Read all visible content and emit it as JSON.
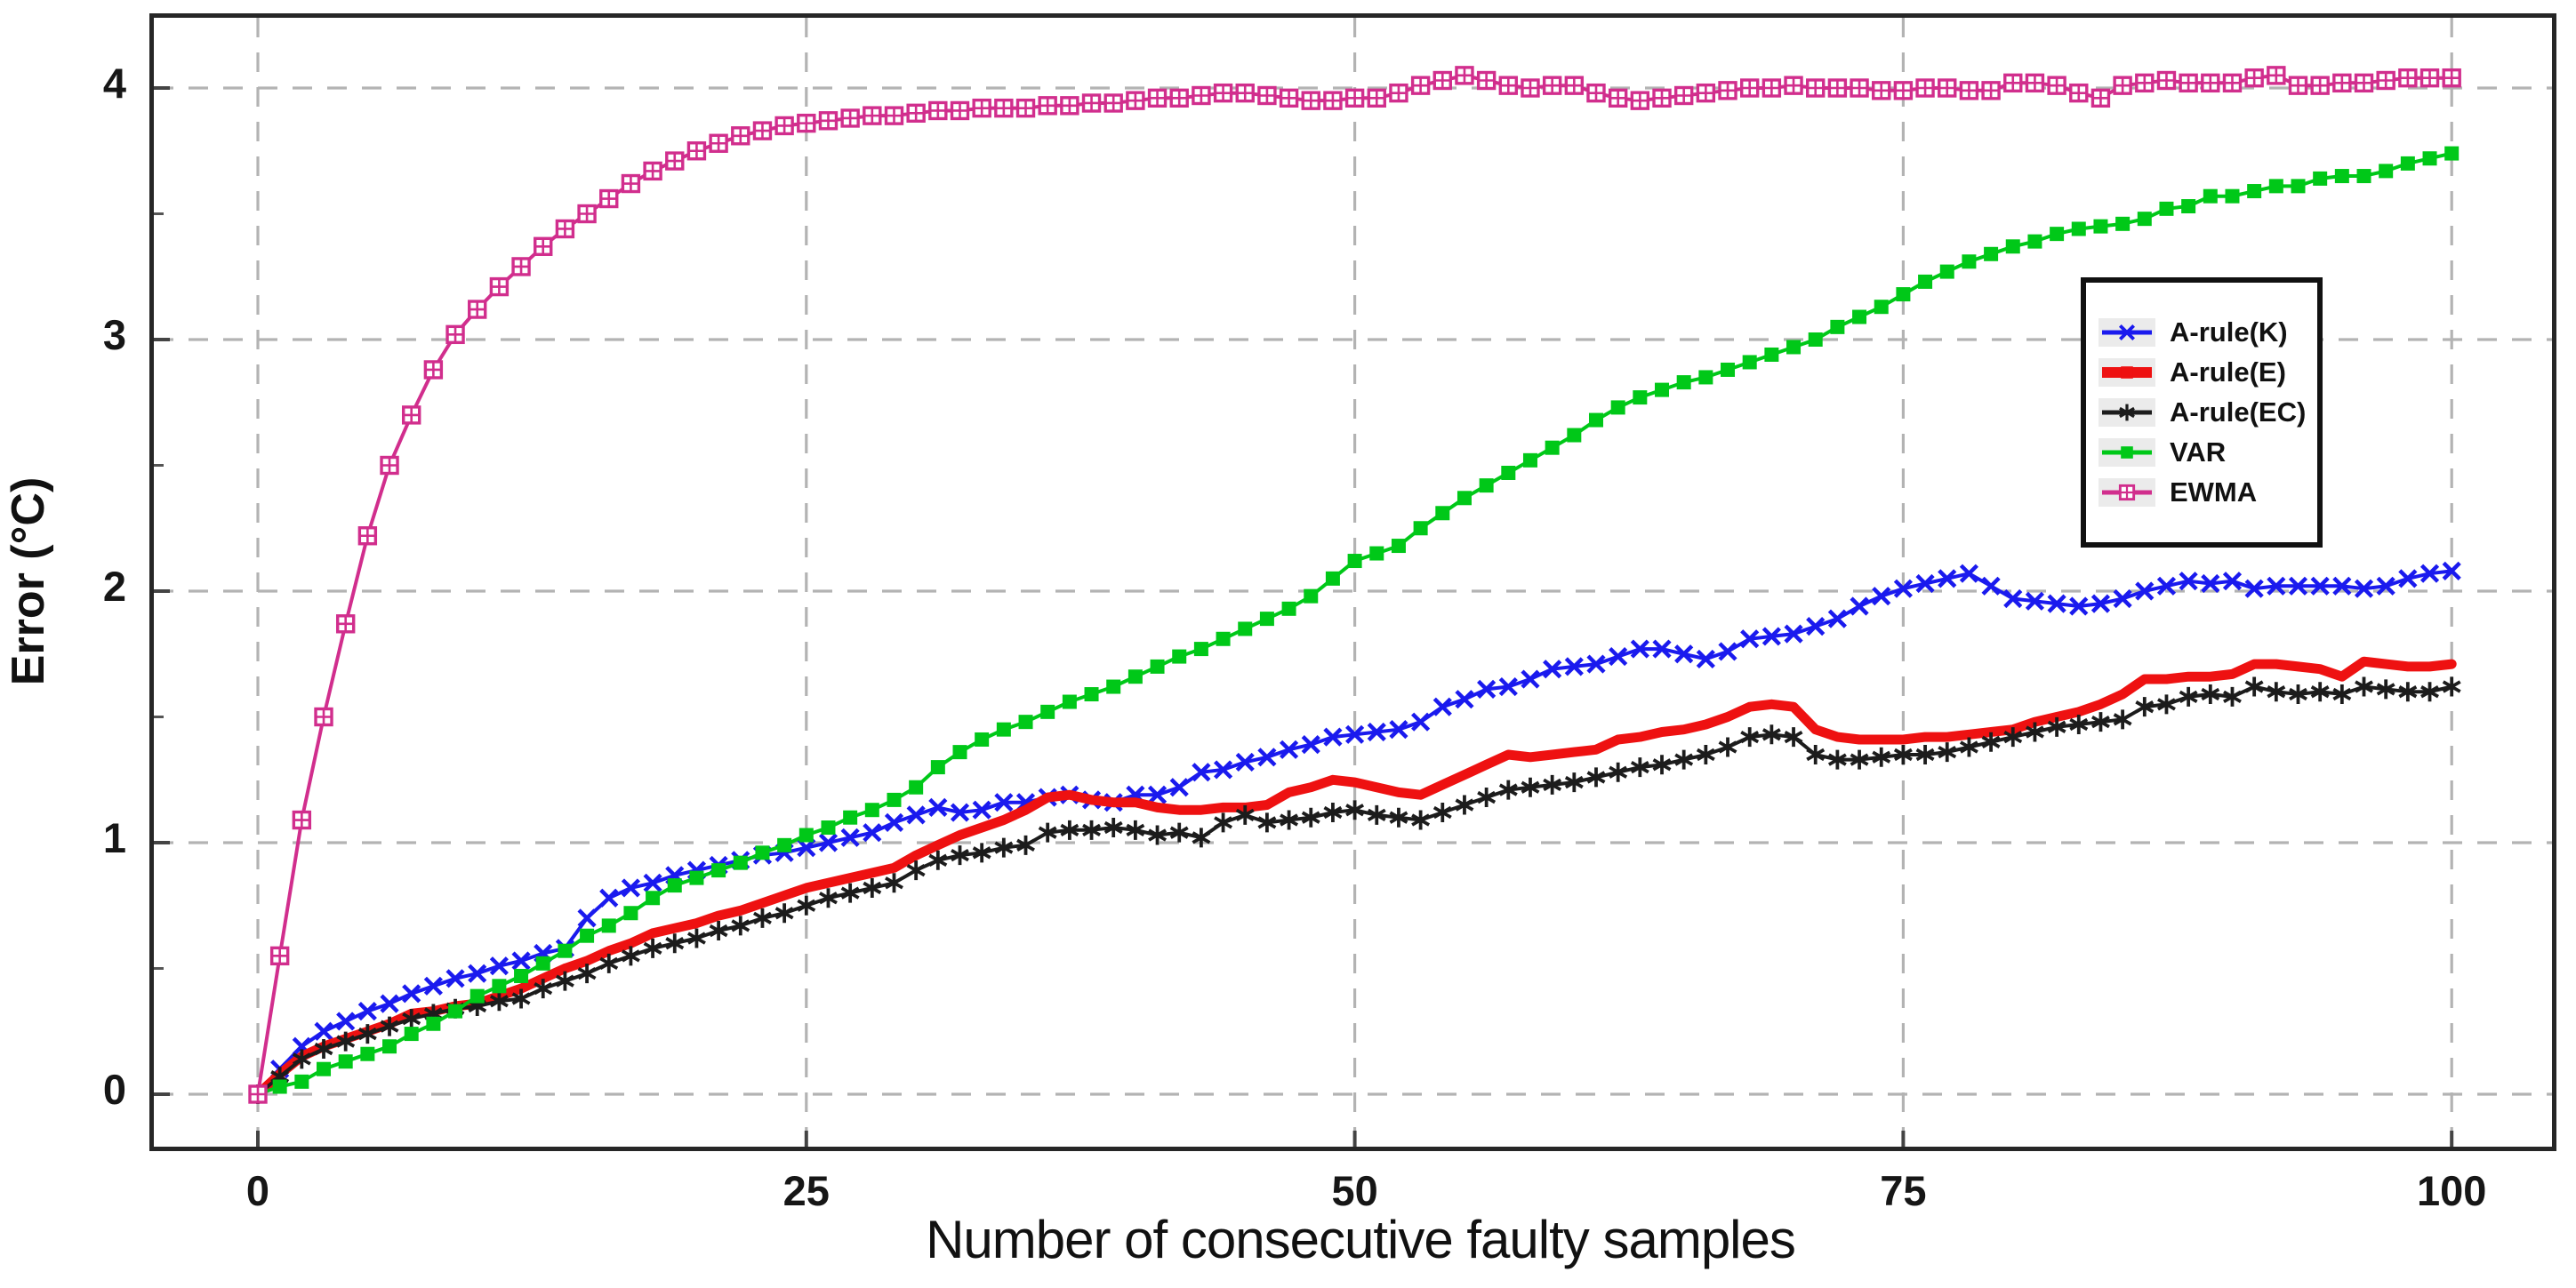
{
  "chart_data": {
    "type": "line",
    "title": "",
    "xlabel": "Number of consecutive faulty samples",
    "ylabel": "Error (°C)",
    "xlim": [
      -5,
      104.8
    ],
    "ylim": [
      -0.23,
      4.3
    ],
    "x_tick_values": [
      0,
      25,
      50,
      75,
      100
    ],
    "x_tick_labels": [
      "0",
      "25",
      "50",
      "75",
      "100"
    ],
    "y_tick_values": [
      0,
      1,
      2,
      3,
      4
    ],
    "y_tick_labels": [
      "0",
      "1",
      "2",
      "3",
      "4"
    ],
    "grid": "dashed-major-both-axes",
    "legend_position": "upper-right-inset",
    "x_start": 0,
    "x_step": 1,
    "series": [
      {
        "name": "A-rule(K)",
        "color": "#1a1aee",
        "marker": "x",
        "line_width": 4,
        "values": [
          0.0,
          0.1,
          0.19,
          0.25,
          0.29,
          0.33,
          0.36,
          0.4,
          0.43,
          0.46,
          0.48,
          0.51,
          0.53,
          0.56,
          0.58,
          0.7,
          0.78,
          0.82,
          0.84,
          0.87,
          0.89,
          0.91,
          0.93,
          0.95,
          0.96,
          0.98,
          1.0,
          1.02,
          1.04,
          1.08,
          1.11,
          1.14,
          1.12,
          1.13,
          1.16,
          1.16,
          1.18,
          1.19,
          1.17,
          1.16,
          1.19,
          1.19,
          1.22,
          1.28,
          1.29,
          1.32,
          1.34,
          1.37,
          1.39,
          1.42,
          1.43,
          1.44,
          1.45,
          1.48,
          1.54,
          1.57,
          1.61,
          1.62,
          1.65,
          1.69,
          1.7,
          1.71,
          1.74,
          1.77,
          1.77,
          1.75,
          1.73,
          1.76,
          1.81,
          1.82,
          1.83,
          1.86,
          1.89,
          1.94,
          1.98,
          2.01,
          2.03,
          2.05,
          2.07,
          2.02,
          1.97,
          1.96,
          1.95,
          1.94,
          1.95,
          1.97,
          2.0,
          2.02,
          2.04,
          2.03,
          2.04,
          2.01,
          2.02,
          2.02,
          2.02,
          2.02,
          2.01,
          2.02,
          2.05,
          2.07,
          2.08
        ]
      },
      {
        "name": "A-rule(E)",
        "color": "#ee1111",
        "marker": "none",
        "line_width": 11,
        "values": [
          0.0,
          0.08,
          0.15,
          0.19,
          0.22,
          0.25,
          0.28,
          0.32,
          0.33,
          0.35,
          0.36,
          0.39,
          0.42,
          0.46,
          0.5,
          0.53,
          0.57,
          0.6,
          0.64,
          0.66,
          0.68,
          0.71,
          0.73,
          0.76,
          0.79,
          0.82,
          0.84,
          0.86,
          0.88,
          0.9,
          0.95,
          0.99,
          1.03,
          1.06,
          1.09,
          1.13,
          1.18,
          1.19,
          1.17,
          1.16,
          1.16,
          1.14,
          1.13,
          1.13,
          1.14,
          1.14,
          1.15,
          1.2,
          1.22,
          1.25,
          1.24,
          1.22,
          1.2,
          1.19,
          1.23,
          1.27,
          1.31,
          1.35,
          1.34,
          1.35,
          1.36,
          1.37,
          1.41,
          1.42,
          1.44,
          1.45,
          1.47,
          1.5,
          1.54,
          1.55,
          1.54,
          1.45,
          1.42,
          1.41,
          1.41,
          1.41,
          1.42,
          1.42,
          1.43,
          1.44,
          1.45,
          1.48,
          1.5,
          1.52,
          1.55,
          1.59,
          1.65,
          1.65,
          1.66,
          1.66,
          1.67,
          1.71,
          1.71,
          1.7,
          1.69,
          1.66,
          1.72,
          1.71,
          1.7,
          1.7,
          1.71
        ]
      },
      {
        "name": "A-rule(EC)",
        "color": "#1c1c1c",
        "marker": "asterisk",
        "line_width": 4,
        "values": [
          0.0,
          0.07,
          0.14,
          0.18,
          0.21,
          0.24,
          0.27,
          0.3,
          0.32,
          0.34,
          0.35,
          0.37,
          0.38,
          0.42,
          0.45,
          0.48,
          0.52,
          0.55,
          0.58,
          0.6,
          0.62,
          0.65,
          0.67,
          0.7,
          0.72,
          0.75,
          0.78,
          0.8,
          0.82,
          0.84,
          0.89,
          0.93,
          0.95,
          0.96,
          0.98,
          0.99,
          1.04,
          1.05,
          1.05,
          1.06,
          1.05,
          1.03,
          1.04,
          1.02,
          1.08,
          1.11,
          1.08,
          1.09,
          1.1,
          1.12,
          1.13,
          1.11,
          1.1,
          1.09,
          1.12,
          1.15,
          1.18,
          1.21,
          1.22,
          1.23,
          1.24,
          1.26,
          1.28,
          1.3,
          1.31,
          1.33,
          1.35,
          1.38,
          1.42,
          1.43,
          1.42,
          1.35,
          1.33,
          1.33,
          1.34,
          1.35,
          1.35,
          1.36,
          1.38,
          1.4,
          1.42,
          1.44,
          1.46,
          1.47,
          1.48,
          1.49,
          1.54,
          1.55,
          1.58,
          1.59,
          1.58,
          1.62,
          1.6,
          1.59,
          1.6,
          1.59,
          1.62,
          1.61,
          1.6,
          1.6,
          1.62
        ]
      },
      {
        "name": "VAR",
        "color": "#00c818",
        "marker": "square",
        "line_width": 4,
        "values": [
          0.0,
          0.03,
          0.05,
          0.1,
          0.13,
          0.16,
          0.19,
          0.24,
          0.28,
          0.33,
          0.39,
          0.43,
          0.47,
          0.52,
          0.57,
          0.63,
          0.67,
          0.72,
          0.78,
          0.83,
          0.86,
          0.89,
          0.92,
          0.96,
          0.99,
          1.03,
          1.06,
          1.1,
          1.13,
          1.17,
          1.22,
          1.3,
          1.36,
          1.41,
          1.45,
          1.48,
          1.52,
          1.56,
          1.59,
          1.62,
          1.66,
          1.7,
          1.74,
          1.77,
          1.81,
          1.85,
          1.89,
          1.93,
          1.98,
          2.05,
          2.12,
          2.15,
          2.18,
          2.25,
          2.31,
          2.37,
          2.42,
          2.47,
          2.52,
          2.57,
          2.62,
          2.68,
          2.73,
          2.77,
          2.8,
          2.83,
          2.85,
          2.88,
          2.91,
          2.94,
          2.97,
          3.0,
          3.05,
          3.09,
          3.13,
          3.18,
          3.23,
          3.27,
          3.31,
          3.34,
          3.37,
          3.39,
          3.42,
          3.44,
          3.45,
          3.46,
          3.48,
          3.52,
          3.53,
          3.57,
          3.57,
          3.59,
          3.61,
          3.61,
          3.64,
          3.65,
          3.65,
          3.67,
          3.7,
          3.72,
          3.74
        ]
      },
      {
        "name": "EWMA",
        "color": "#d12e8d",
        "marker": "square-cross",
        "line_width": 4,
        "values": [
          0.0,
          0.55,
          1.09,
          1.5,
          1.87,
          2.22,
          2.5,
          2.7,
          2.88,
          3.02,
          3.12,
          3.21,
          3.29,
          3.37,
          3.44,
          3.5,
          3.56,
          3.62,
          3.67,
          3.71,
          3.75,
          3.78,
          3.81,
          3.83,
          3.85,
          3.86,
          3.87,
          3.88,
          3.89,
          3.89,
          3.9,
          3.91,
          3.91,
          3.92,
          3.92,
          3.92,
          3.93,
          3.93,
          3.94,
          3.94,
          3.95,
          3.96,
          3.96,
          3.97,
          3.98,
          3.98,
          3.97,
          3.96,
          3.95,
          3.95,
          3.96,
          3.96,
          3.98,
          4.01,
          4.03,
          4.05,
          4.03,
          4.01,
          4.0,
          4.01,
          4.01,
          3.98,
          3.96,
          3.95,
          3.96,
          3.97,
          3.98,
          3.99,
          4.0,
          4.0,
          4.01,
          4.0,
          4.0,
          4.0,
          3.99,
          3.99,
          4.0,
          4.0,
          3.99,
          3.99,
          4.02,
          4.02,
          4.01,
          3.98,
          3.96,
          4.01,
          4.02,
          4.03,
          4.02,
          4.02,
          4.02,
          4.04,
          4.05,
          4.01,
          4.01,
          4.02,
          4.02,
          4.03,
          4.04,
          4.04,
          4.04
        ]
      }
    ],
    "colors": {
      "grid": "#b3b3b3",
      "spine": "#262626",
      "background": "#ffffff",
      "legend_sample_background": "#ebebeb"
    }
  }
}
